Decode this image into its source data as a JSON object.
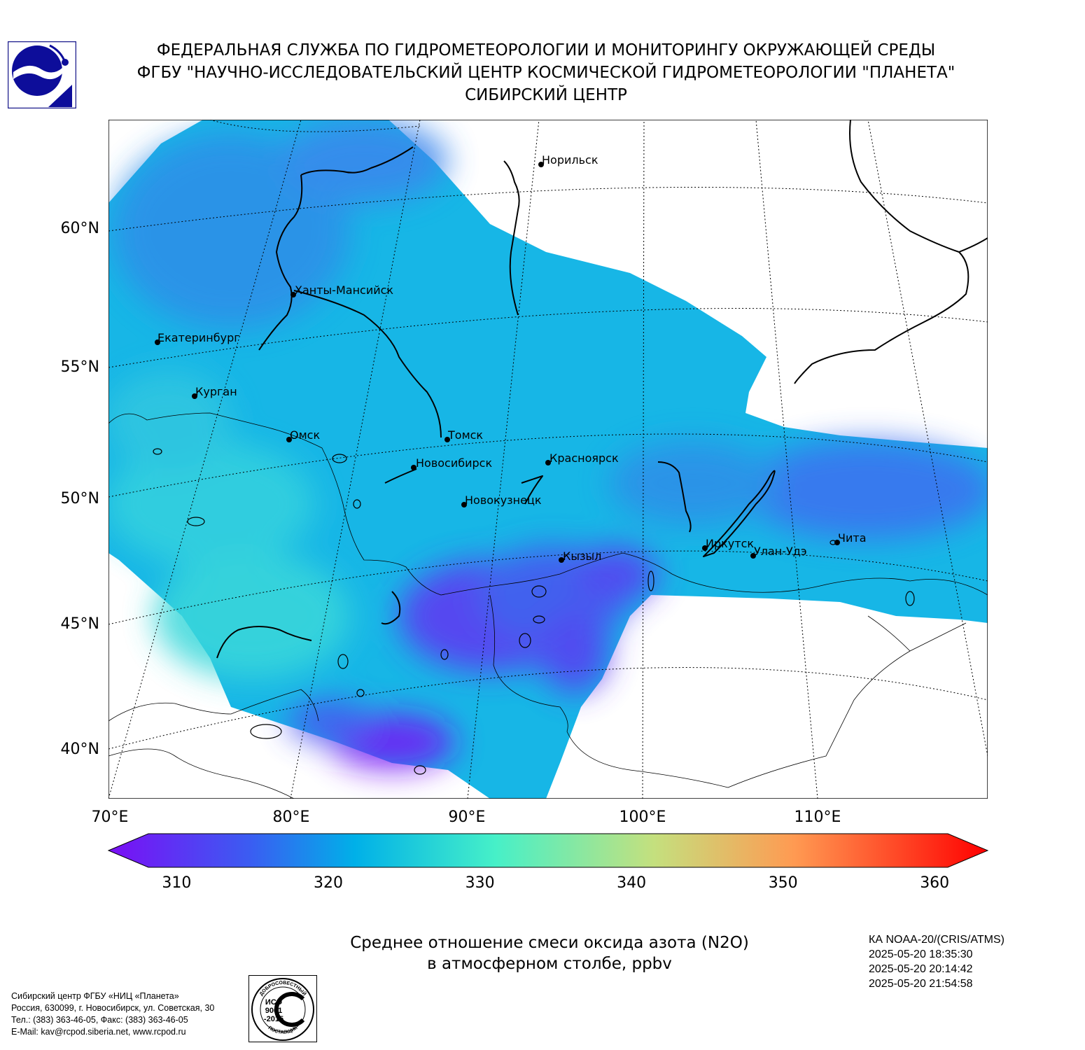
{
  "header": {
    "line1": "ФЕДЕРАЛЬНАЯ СЛУЖБА ПО ГИДРОМЕТЕОРОЛОГИИ И МОНИТОРИНГУ ОКРУЖАЮЩЕЙ СРЕДЫ",
    "line2": "ФГБУ \"НАУЧНО-ИССЛЕДОВАТЕЛЬСКИЙ ЦЕНТР КОСМИЧЕСКОЙ ГИДРОМЕТЕОРОЛОГИИ \"ПЛАНЕТА\"",
    "line3": "СИБИРСКИЙ ЦЕНТР"
  },
  "map": {
    "lat_labels": [
      "60°N",
      "55°N",
      "50°N",
      "45°N",
      "40°N"
    ],
    "lon_labels": [
      "70°E",
      "80°E",
      "90°E",
      "100°E",
      "110°E"
    ],
    "cities": [
      {
        "name": "Норильск"
      },
      {
        "name": "Ханты-Мансийск"
      },
      {
        "name": "Екатеринбург"
      },
      {
        "name": "Курган"
      },
      {
        "name": "Омск"
      },
      {
        "name": "Томск"
      },
      {
        "name": "Новосибирск"
      },
      {
        "name": "Красноярск"
      },
      {
        "name": "Новокузнецк"
      },
      {
        "name": "Иркутск"
      },
      {
        "name": "Улан-Удэ"
      },
      {
        "name": "Чита"
      },
      {
        "name": "Кызыл"
      }
    ]
  },
  "colorbar": {
    "min": 305.5,
    "max": 363.5,
    "ticks": [
      "310",
      "320",
      "330",
      "340",
      "350",
      "360"
    ],
    "colors": [
      "#7b0ef5",
      "#3b5cf2",
      "#00b0e8",
      "#46f0c8",
      "#c4e07e",
      "#ff9a52",
      "#ff0000"
    ]
  },
  "subtitle": {
    "line1": "Среднее отношение смеси оксида азота (N2O)",
    "line2": "в атмосферном столбе, ppbv"
  },
  "meta": {
    "satellite": "КА NOAA-20/(CRIS/ATMS)",
    "time1": "2025-05-20 18:35:30",
    "time2": "2025-05-20 20:14:42",
    "time3": "2025-05-20 21:54:58"
  },
  "footer": {
    "line1": "Сибирский центр ФГБУ «НИЦ «Планета»",
    "line2": "Россия, 630099, г. Новосибирск, ул. Советская, 30",
    "line3": "Тел.: (383) 363-46-05, Факс: (383) 363-46-05",
    "line4": "E-Mail: kav@rcpod.siberia.net, www.rcpod.ru"
  },
  "iso_badge": {
    "top_text": "ДОБРОСОВЕСТНЫЙ",
    "line1": "ИСО",
    "line2": "9001",
    "line3": "-2015",
    "bottom_text": "ПОСТАВЩИК"
  }
}
